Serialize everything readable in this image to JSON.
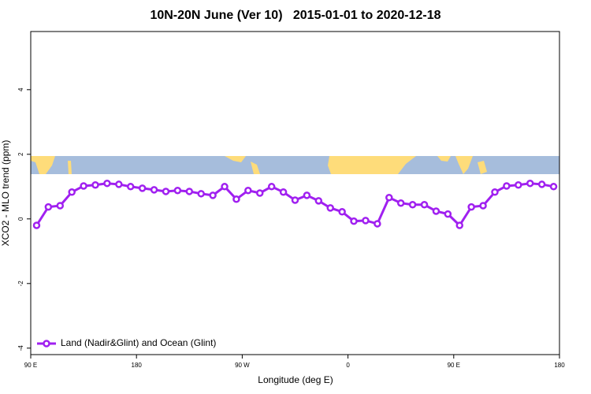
{
  "chart_data": {
    "type": "line",
    "title": "10N-20N June (Ver 10)   2015-01-01 to 2020-12-18",
    "x_label": "Longitude (deg E)",
    "y_label": "XCO2 - MLO trend (ppm)",
    "xlim": [
      90,
      540
    ],
    "xticks": [
      {
        "value": 90,
        "label": "90 E"
      },
      {
        "value": 180,
        "label": "180"
      },
      {
        "value": 270,
        "label": "90 W"
      },
      {
        "value": 360,
        "label": "0"
      },
      {
        "value": 450,
        "label": "90 E"
      },
      {
        "value": 540,
        "label": "180"
      }
    ],
    "ylim": [
      -4.2,
      5.8
    ],
    "yticks": [
      -4,
      -2,
      0,
      2,
      4
    ],
    "legend": "bottom-left",
    "x": [
      95,
      105,
      115,
      125,
      135,
      145,
      155,
      165,
      175,
      185,
      195,
      205,
      215,
      225,
      235,
      245,
      255,
      265,
      275,
      285,
      295,
      305,
      315,
      325,
      335,
      345,
      355,
      365,
      375,
      385,
      395,
      405,
      415,
      425,
      435,
      445,
      455,
      465,
      475,
      485,
      495,
      505,
      515,
      525,
      535
    ],
    "series": [
      {
        "name": "Land (Nadir&Glint) and Ocean (Glint)",
        "color": "#a020f0",
        "values": [
          -0.2,
          0.37,
          0.41,
          0.83,
          1.02,
          1.05,
          1.1,
          1.07,
          1.0,
          0.95,
          0.9,
          0.85,
          0.88,
          0.85,
          0.78,
          0.73,
          1.0,
          0.61,
          0.88,
          0.8,
          1.0,
          0.83,
          0.58,
          0.73,
          0.56,
          0.34,
          0.22,
          -0.07,
          -0.05,
          -0.15,
          0.66,
          0.49,
          0.44,
          0.44,
          0.24,
          0.15,
          -0.2,
          0.37,
          0.41,
          0.83,
          1.02,
          1.05,
          1.1,
          1.07,
          1.0
        ]
      }
    ]
  }
}
